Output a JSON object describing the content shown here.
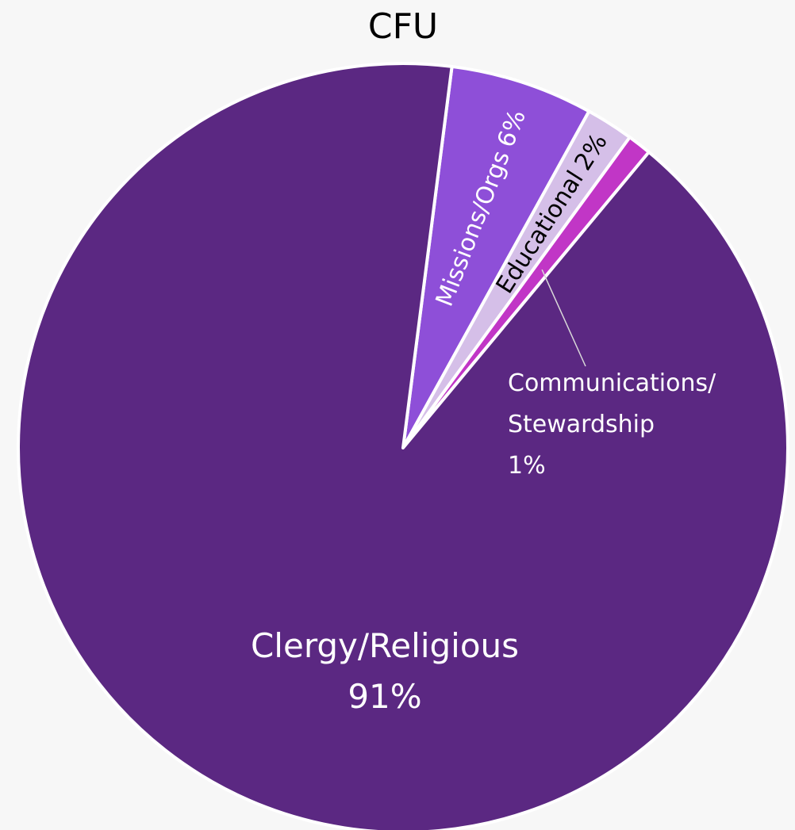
{
  "chart_data": {
    "type": "pie",
    "title": "CFU",
    "categories": [
      "Missions/Orgs",
      "Educational",
      "Communications/Stewardship",
      "Clergy/Religious"
    ],
    "values": [
      6,
      2,
      1,
      91
    ],
    "value_labels": [
      "6%",
      "2%",
      "1%",
      "91%"
    ],
    "colors": [
      "#8e4fd8",
      "#d5bfe8",
      "#c136c6",
      "#5b2882"
    ]
  }
}
